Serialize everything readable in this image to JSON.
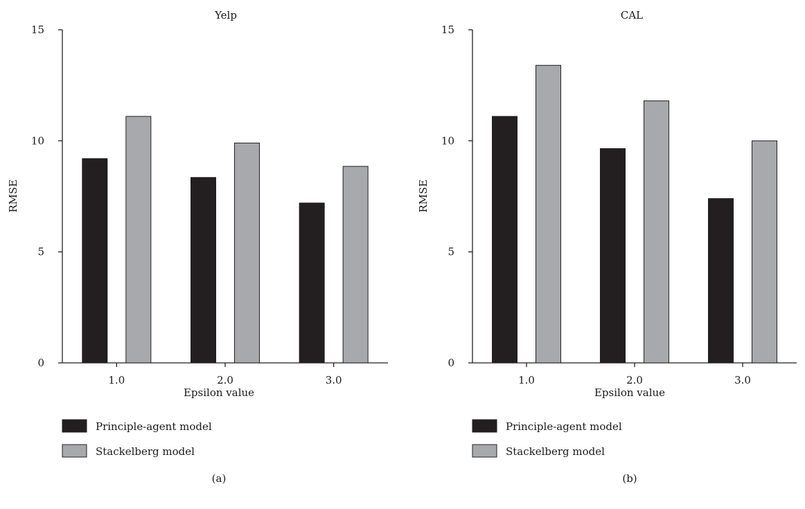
{
  "colors": {
    "principle_agent": "#231f20",
    "stackelberg": "#a7a9ac",
    "stroke": "#231f20"
  },
  "chart_data": [
    {
      "type": "bar",
      "title": "Yelp",
      "caption": "(a)",
      "xlabel": "Epsilon value",
      "ylabel": "RMSE",
      "categories": [
        "1.0",
        "2.0",
        "3.0"
      ],
      "ylim": [
        0,
        15
      ],
      "yticks": [
        "0",
        "5",
        "10",
        "15"
      ],
      "grid": false,
      "legend_position": "bottom-left",
      "series": [
        {
          "name": "Principle-agent model",
          "values": [
            9.2,
            8.35,
            7.2
          ]
        },
        {
          "name": "Stackelberg model",
          "values": [
            11.1,
            9.9,
            8.85
          ]
        }
      ]
    },
    {
      "type": "bar",
      "title": "CAL",
      "caption": "(b)",
      "xlabel": "Epsilon value",
      "ylabel": "RMSE",
      "categories": [
        "1.0",
        "2.0",
        "3.0"
      ],
      "ylim": [
        0,
        15
      ],
      "yticks": [
        "0",
        "5",
        "10",
        "15"
      ],
      "grid": false,
      "legend_position": "bottom-left",
      "series": [
        {
          "name": "Principle-agent model",
          "values": [
            11.1,
            9.65,
            7.4
          ]
        },
        {
          "name": "Stackelberg model",
          "values": [
            13.4,
            11.8,
            10.0
          ]
        }
      ]
    }
  ]
}
